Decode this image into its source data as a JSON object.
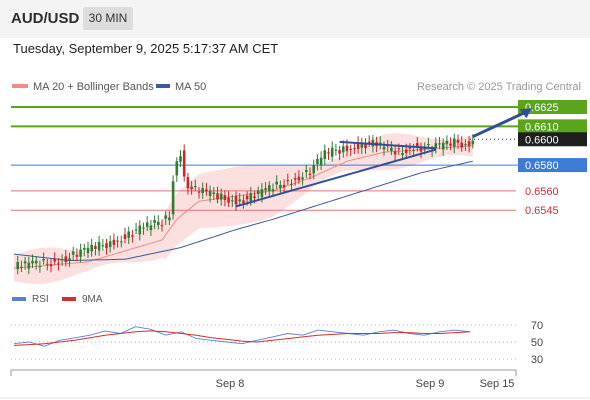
{
  "header": {
    "symbol": "AUD/USD",
    "timeframe": "30 MIN"
  },
  "datetime": "Tuesday, September 9, 2025 5:17:37 AM CET",
  "legend": {
    "items": [
      {
        "label": "MA 20 + Bollinger Bands",
        "color": "#f28b82"
      },
      {
        "label": "MA 50",
        "color": "#3d5a99"
      }
    ],
    "credit": "Research © 2025 Trading Central"
  },
  "colors": {
    "bull": "#2e7d32",
    "bear": "#c62828",
    "green_level": "#5aa51c",
    "blue_level": "#3e7bd6",
    "red_level": "#e57373",
    "current": "#1f1f1f",
    "band": "#fbd4d4",
    "ma20": "#f28b82",
    "ma50": "#3d5a99",
    "trend": "#2f4f9a",
    "rsi": "#5b7fd6",
    "rsi_ma": "#d32f2f"
  },
  "chart_data": [
    {
      "type": "candlestick",
      "title": "AUD/USD",
      "timeframe": "30 MIN",
      "x_ticks": [
        "Sep 8",
        "Sep 9",
        "Sep 15"
      ],
      "ylim": [
        0.6497,
        0.6642
      ],
      "price_levels": [
        {
          "value": 0.6625,
          "label": "0.6625",
          "style": "green"
        },
        {
          "value": 0.661,
          "label": "0.6610",
          "style": "green"
        },
        {
          "value": 0.66,
          "label": "0.6600",
          "style": "current"
        },
        {
          "value": 0.658,
          "label": "0.6580",
          "style": "blue"
        },
        {
          "value": 0.656,
          "label": "0.6560",
          "style": "red"
        },
        {
          "value": 0.6545,
          "label": "0.6545",
          "style": "red"
        }
      ],
      "series": [
        {
          "name": "AUD/USD",
          "key_prices": [
            [
              0,
              0.6501
            ],
            [
              5,
              0.6503
            ],
            [
              10,
              0.6505
            ],
            [
              15,
              0.6509
            ],
            [
              20,
              0.6514
            ],
            [
              25,
              0.6519
            ],
            [
              30,
              0.6525
            ],
            [
              35,
              0.6531
            ],
            [
              40,
              0.6536
            ],
            [
              42,
              0.6542
            ],
            [
              43,
              0.657
            ],
            [
              44,
              0.6585
            ],
            [
              45,
              0.659
            ],
            [
              46,
              0.657
            ],
            [
              48,
              0.6561
            ],
            [
              52,
              0.6558
            ],
            [
              56,
              0.6555
            ],
            [
              60,
              0.6553
            ],
            [
              64,
              0.6555
            ],
            [
              68,
              0.656
            ],
            [
              72,
              0.6565
            ],
            [
              76,
              0.657
            ],
            [
              80,
              0.6575
            ],
            [
              84,
              0.6588
            ],
            [
              88,
              0.6592
            ],
            [
              92,
              0.6595
            ],
            [
              96,
              0.6597
            ],
            [
              100,
              0.6593
            ],
            [
              104,
              0.659
            ],
            [
              108,
              0.6595
            ],
            [
              112,
              0.6593
            ],
            [
              116,
              0.6595
            ],
            [
              120,
              0.6598
            ],
            [
              122,
              0.6596
            ],
            [
              124,
              0.66
            ]
          ]
        },
        {
          "name": "MA 20",
          "values": [
            [
              0,
              0.65
            ],
            [
              20,
              0.6505
            ],
            [
              40,
              0.6522
            ],
            [
              44,
              0.6538
            ],
            [
              50,
              0.6552
            ],
            [
              60,
              0.6556
            ],
            [
              70,
              0.656
            ],
            [
              80,
              0.657
            ],
            [
              90,
              0.6583
            ],
            [
              100,
              0.659
            ],
            [
              110,
              0.6592
            ],
            [
              124,
              0.6595
            ]
          ]
        },
        {
          "name": "MA 50",
          "values": [
            [
              0,
              0.6511
            ],
            [
              15,
              0.6506
            ],
            [
              30,
              0.6507
            ],
            [
              45,
              0.6516
            ],
            [
              60,
              0.653
            ],
            [
              70,
              0.6538
            ],
            [
              80,
              0.6547
            ],
            [
              90,
              0.6556
            ],
            [
              100,
              0.6565
            ],
            [
              110,
              0.6574
            ],
            [
              124,
              0.6583
            ]
          ]
        }
      ],
      "trendlines": [
        {
          "type": "support",
          "from": [
            60,
            0.6548
          ],
          "to": [
            114,
            0.6592
          ]
        },
        {
          "type": "resistance",
          "from": [
            88,
            0.6598
          ],
          "to": [
            114,
            0.6593
          ]
        },
        {
          "type": "arrow",
          "from": [
            124,
            0.6602
          ],
          "to": [
            135,
            0.6624
          ]
        }
      ]
    },
    {
      "type": "line",
      "title": "",
      "ylim": [
        20,
        80
      ],
      "yticks": [
        30,
        50,
        70
      ],
      "x_ticks": [
        "Sep 8",
        "Sep 9",
        "Sep 15"
      ],
      "series": [
        {
          "name": "RSI",
          "values": [
            48,
            50,
            45,
            52,
            55,
            58,
            63,
            60,
            68,
            65,
            58,
            62,
            54,
            52,
            50,
            48,
            52,
            56,
            60,
            58,
            64,
            62,
            60,
            58,
            62,
            64,
            60,
            58,
            62,
            64,
            62
          ]
        },
        {
          "name": "9MA",
          "values": [
            46,
            47,
            48,
            50,
            52,
            55,
            58,
            60,
            62,
            63,
            62,
            60,
            58,
            55,
            53,
            51,
            50,
            52,
            54,
            56,
            58,
            59,
            60,
            60,
            60,
            61,
            61,
            60,
            60,
            61,
            62
          ]
        }
      ]
    }
  ]
}
